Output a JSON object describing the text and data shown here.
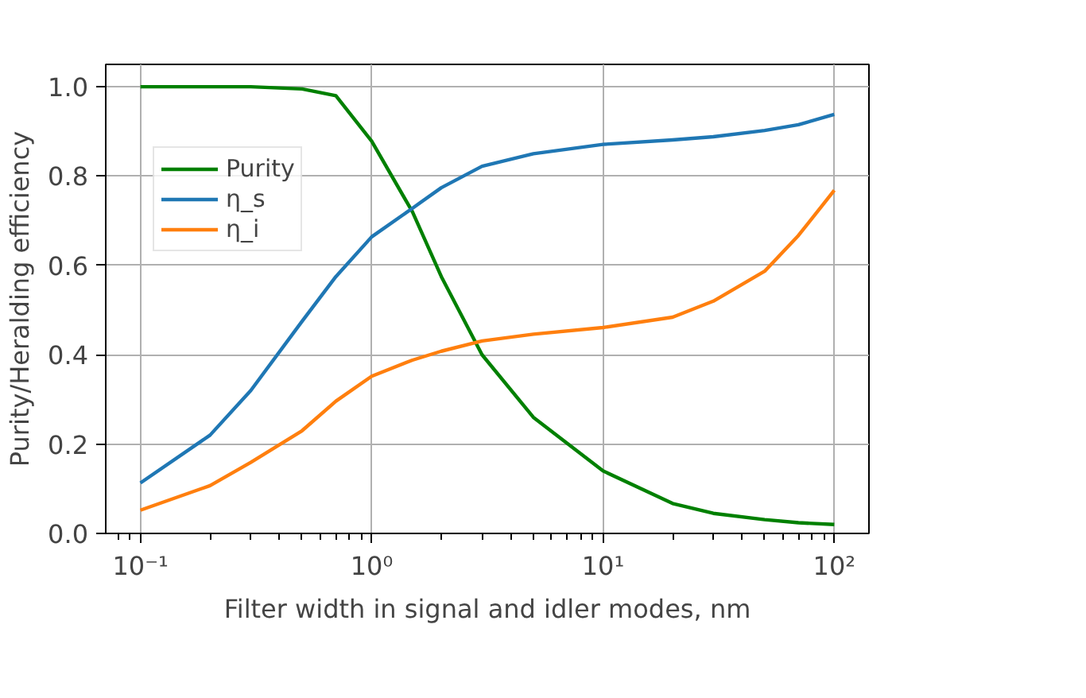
{
  "chart_data": {
    "type": "line",
    "xlabel": "Filter width in signal and idler modes, nm",
    "ylabel": "Purity/Heralding efficiency",
    "x": [
      0.1,
      0.2,
      0.3,
      0.5,
      0.7,
      1.0,
      1.5,
      2,
      3,
      5,
      10,
      20,
      30,
      50,
      70,
      100
    ],
    "series": [
      {
        "name": "Purity",
        "color": "#008000",
        "values": [
          1.0,
          1.0,
          1.0,
          0.995,
          0.98,
          0.878,
          0.72,
          0.575,
          0.4,
          0.26,
          0.14,
          0.067,
          0.045,
          0.031,
          0.024,
          0.02
        ]
      },
      {
        "name": "η_s",
        "color": "#1f77b4",
        "values": [
          0.113,
          0.22,
          0.32,
          0.475,
          0.575,
          0.664,
          0.728,
          0.774,
          0.822,
          0.85,
          0.871,
          0.881,
          0.888,
          0.902,
          0.915,
          0.938
        ]
      },
      {
        "name": "η_i",
        "color": "#ff7f0e",
        "values": [
          0.052,
          0.107,
          0.159,
          0.23,
          0.296,
          0.352,
          0.388,
          0.408,
          0.431,
          0.446,
          0.461,
          0.484,
          0.52,
          0.587,
          0.667,
          0.768
        ]
      }
    ],
    "log": "x",
    "xlim": [
      0.0708,
      141.25
    ],
    "ylim": [
      0,
      1.05
    ],
    "xticks": [
      {
        "value": 0.1,
        "label": "10⁻¹"
      },
      {
        "value": 1,
        "label": "10⁰"
      },
      {
        "value": 10,
        "label": "10¹"
      },
      {
        "value": 100,
        "label": "10²"
      }
    ],
    "yticks": [
      {
        "value": 0,
        "label": "0.0"
      },
      {
        "value": 0.2,
        "label": "0.2"
      },
      {
        "value": 0.4,
        "label": "0.4"
      },
      {
        "value": 0.6,
        "label": "0.6"
      },
      {
        "value": 0.8,
        "label": "0.8"
      },
      {
        "value": 1.0,
        "label": "1.0"
      }
    ],
    "grid": true,
    "legend": "top left",
    "line_style": "solid"
  }
}
